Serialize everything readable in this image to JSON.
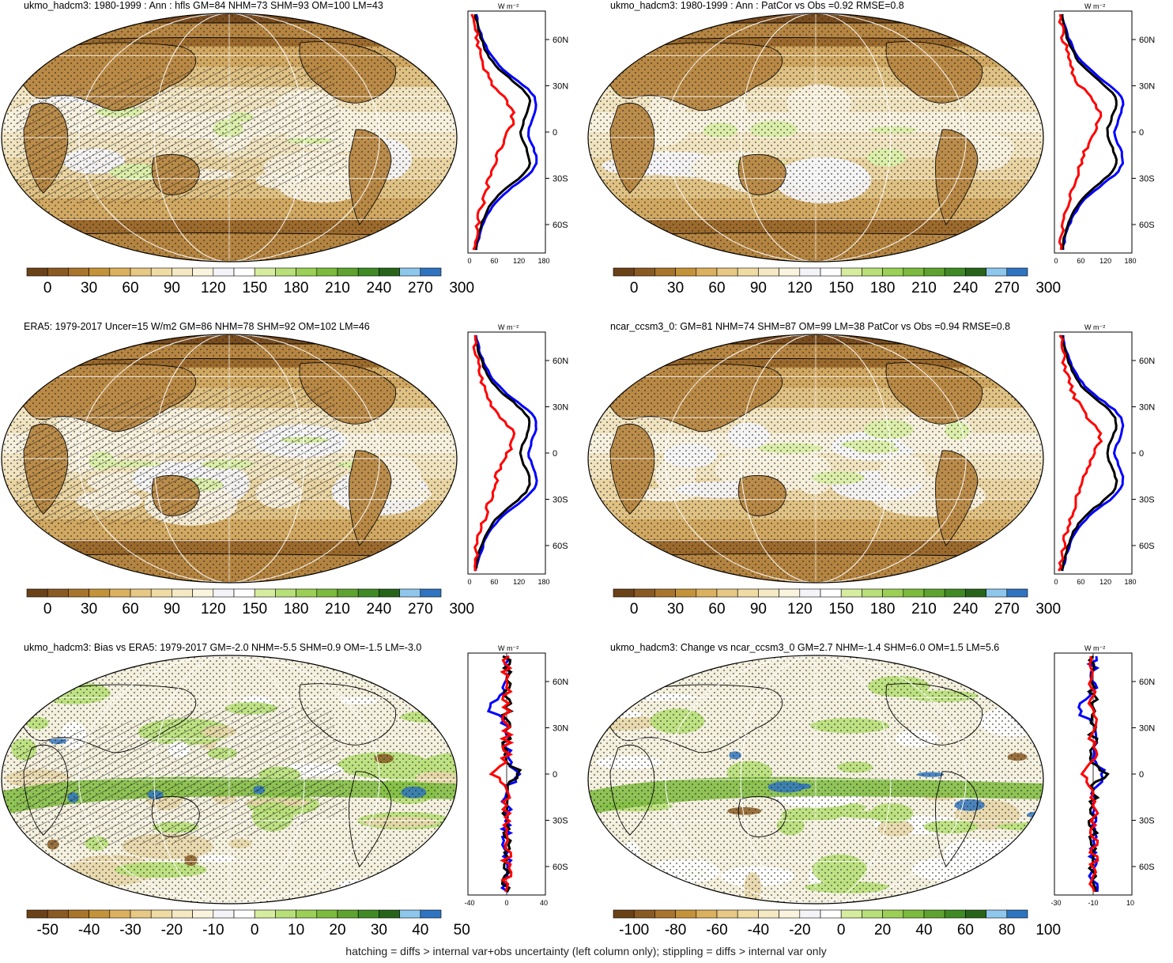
{
  "panels": [
    {
      "id": "p1",
      "title": "ukmo_hadcm3: 1980-1999 : Ann : hfls GM=84 NHM=73 SHM=93 OM=100 LM=43",
      "kind": "abs",
      "profile_unit": "W m⁻²",
      "profile_lat_ticks": [
        "60N",
        "30N",
        "0",
        "30S",
        "60S"
      ],
      "profile_x_ticks": [
        "0",
        "60",
        "120",
        "180"
      ],
      "colorbar_labels": [
        "0",
        "30",
        "60",
        "90",
        "120",
        "150",
        "180",
        "210",
        "240",
        "270",
        "300"
      ],
      "hatched": true
    },
    {
      "id": "p2",
      "title": "ukmo_hadcm3: 1980-1999 : Ann : PatCor vs Obs =0.92 RMSE=0.8",
      "kind": "abs",
      "profile_unit": "W m⁻²",
      "profile_lat_ticks": [
        "60N",
        "30N",
        "0",
        "30S",
        "60S"
      ],
      "profile_x_ticks": [
        "0",
        "60",
        "120",
        "180"
      ],
      "colorbar_labels": [
        "0",
        "30",
        "60",
        "90",
        "120",
        "150",
        "180",
        "210",
        "240",
        "270",
        "300"
      ],
      "hatched": false
    },
    {
      "id": "p3",
      "title": "ERA5: 1979-2017 Uncer=15 W/m2 GM=86 NHM=78 SHM=92 OM=102 LM=46",
      "kind": "abs",
      "profile_unit": "W m⁻²",
      "profile_lat_ticks": [
        "60N",
        "30N",
        "0",
        "30S",
        "60S"
      ],
      "profile_x_ticks": [
        "0",
        "60",
        "120",
        "180"
      ],
      "colorbar_labels": [
        "0",
        "30",
        "60",
        "90",
        "120",
        "150",
        "180",
        "210",
        "240",
        "270",
        "300"
      ],
      "hatched": true
    },
    {
      "id": "p4",
      "title": "ncar_ccsm3_0: GM=81 NHM=74 SHM=87 OM=99 LM=38 PatCor vs Obs =0.94 RMSE=0.8",
      "kind": "abs",
      "profile_unit": "W m⁻²",
      "profile_lat_ticks": [
        "60N",
        "30N",
        "0",
        "30S",
        "60S"
      ],
      "profile_x_ticks": [
        "0",
        "60",
        "120",
        "180"
      ],
      "colorbar_labels": [
        "0",
        "30",
        "60",
        "90",
        "120",
        "150",
        "180",
        "210",
        "240",
        "270",
        "300"
      ],
      "hatched": false
    },
    {
      "id": "p5",
      "title": "ukmo_hadcm3: Bias vs ERA5: 1979-2017 GM=-2.0 NHM=-5.5 SHM=0.9 OM=-1.5 LM=-3.0",
      "kind": "diff",
      "profile_unit": "W m⁻²",
      "profile_lat_ticks": [
        "60N",
        "30N",
        "0",
        "30S",
        "60S"
      ],
      "profile_x_ticks": [
        "-40",
        "0",
        "40"
      ],
      "colorbar_labels": [
        "-50",
        "-40",
        "-30",
        "-20",
        "-10",
        "0",
        "10",
        "20",
        "30",
        "40",
        "50"
      ],
      "hatched": true
    },
    {
      "id": "p6",
      "title": "ukmo_hadcm3: Change vs ncar_ccsm3_0 GM=2.7 NHM=-1.4 SHM=6.0 OM=1.5 LM=5.6",
      "kind": "diff",
      "profile_unit": "W m⁻²",
      "profile_lat_ticks": [
        "60N",
        "30N",
        "0",
        "30S",
        "60S"
      ],
      "profile_x_ticks": [
        "-30",
        "-10",
        "10"
      ],
      "colorbar_labels": [
        "-100",
        "-80",
        "-60",
        "-40",
        "-20",
        "0",
        "20",
        "40",
        "60",
        "80",
        "100"
      ],
      "hatched": false
    }
  ],
  "colorbar_colors": [
    "#6b4218",
    "#8a5a23",
    "#a9752c",
    "#c49339",
    "#dbb15f",
    "#e7c884",
    "#efdba3",
    "#f5e9c3",
    "#faf3dd",
    "#f4f4f8",
    "#ffffff",
    "#d6ec9f",
    "#b8df78",
    "#9bcf55",
    "#7cbb3d",
    "#5ea32f",
    "#3f8a24",
    "#27641a",
    "#8ec6ec",
    "#2f74c0"
  ],
  "profile_series": [
    {
      "color": "#0000ff",
      "label": "blue"
    },
    {
      "color": "#000000",
      "label": "black"
    },
    {
      "color": "#ff0000",
      "label": "red"
    }
  ],
  "footer": "hatching = diffs > internal var+obs uncertainty (left column only); stippling = diffs > internal var only"
}
